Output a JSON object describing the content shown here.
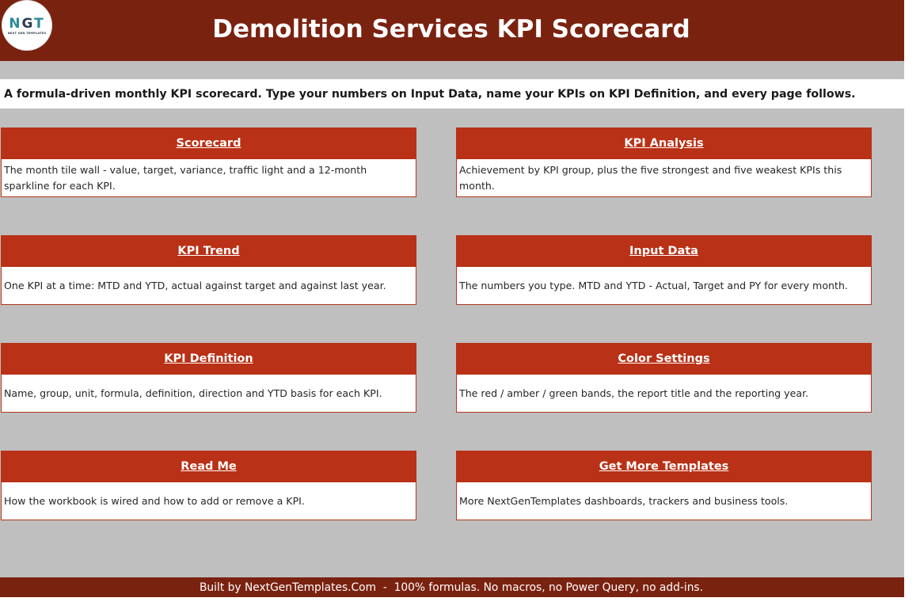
{
  "header": {
    "title": "Demolition Services KPI Scorecard",
    "logo": {
      "mark_n": "N",
      "mark_g": "G",
      "mark_t": "T",
      "subtext": "NEXT GEN TEMPLATES"
    }
  },
  "subtitle": "A formula-driven monthly KPI scorecard. Type your numbers on Input Data, name your KPIs on KPI Definition, and every page follows.",
  "cards": [
    {
      "title": "Scorecard",
      "desc": "The month tile wall - value, target, variance, traffic light and a 12-month sparkline for each KPI."
    },
    {
      "title": "KPI Analysis",
      "desc": "Achievement by KPI group, plus the five strongest and five weakest KPIs this month."
    },
    {
      "title": "KPI Trend",
      "desc": "One KPI at a time: MTD and YTD, actual against target and against last year."
    },
    {
      "title": "Input Data",
      "desc": "The numbers you type. MTD and YTD - Actual, Target and PY for every month."
    },
    {
      "title": "KPI Definition",
      "desc": "Name, group, unit, formula, definition, direction and YTD basis for each KPI."
    },
    {
      "title": "Color Settings",
      "desc": "The red / amber / green bands, the report title and the reporting year."
    },
    {
      "title": "Read Me",
      "desc": "How the workbook is wired and how to add or remove a KPI."
    },
    {
      "title": "Get More Templates",
      "desc": "More NextGenTemplates dashboards, trackers and business tools."
    }
  ],
  "footer": "Built by NextGenTemplates.Com  -  100% formulas. No macros, no Power Query, no add-ins.",
  "colors": {
    "header_bg": "#7a2210",
    "card_header_bg": "#b93116",
    "sheet_bg": "#bfbfbf"
  }
}
